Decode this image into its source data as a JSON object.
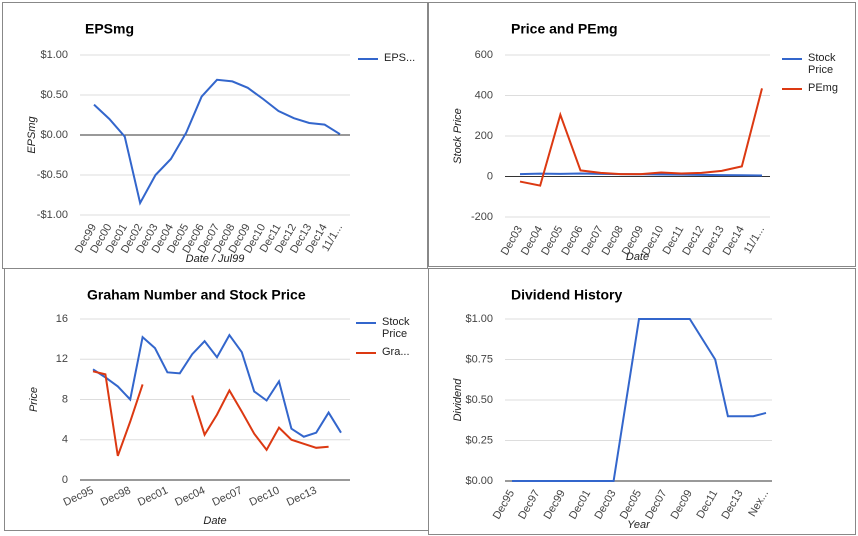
{
  "chart_data": [
    {
      "type": "line",
      "title": "EPSmg",
      "ylabel": "EPSmg",
      "xlabel": "Date / Jul99",
      "categories": [
        "Dec99",
        "Dec00",
        "Dec01",
        "Dec02",
        "Dec03",
        "Dec04",
        "Dec05",
        "Dec06",
        "Dec07",
        "Dec08",
        "Dec09",
        "Dec10",
        "Dec11",
        "Dec12",
        "Dec13",
        "Dec14",
        "11/1..."
      ],
      "series": [
        {
          "name": "EPS...",
          "color": "#3366cc",
          "values": [
            0.38,
            0.2,
            -0.02,
            -0.85,
            -0.5,
            -0.3,
            0.03,
            0.48,
            0.69,
            0.67,
            0.59,
            0.45,
            0.3,
            0.21,
            0.15,
            0.13,
            0.01
          ]
        }
      ],
      "ylim": [
        -1,
        1
      ],
      "yticks": [
        {
          "value": -1,
          "label": "-$1.00"
        },
        {
          "value": -0.5,
          "label": "-$0.50"
        },
        {
          "value": 0,
          "label": "$0.00"
        },
        {
          "value": 0.5,
          "label": "$0.50"
        },
        {
          "value": 1,
          "label": "$1.00"
        }
      ],
      "grid": true,
      "legend": "right"
    },
    {
      "type": "line",
      "title": "Price and PEmg",
      "ylabel": "Stock Price",
      "xlabel": "Date",
      "categories": [
        "Dec03",
        "Dec04",
        "Dec05",
        "Dec06",
        "Dec07",
        "Dec08",
        "Dec09",
        "Dec10",
        "Dec11",
        "Dec12",
        "Dec13",
        "Dec14",
        "11/1..."
      ],
      "series": [
        {
          "name": "Stock Price",
          "color": "#3366cc",
          "values": [
            12,
            14,
            13,
            15,
            13,
            12,
            11,
            10,
            9,
            8,
            7,
            6,
            5
          ]
        },
        {
          "name": "PEmg",
          "color": "#dc3912",
          "values": [
            -25,
            -45,
            305,
            30,
            18,
            12,
            12,
            20,
            15,
            18,
            28,
            50,
            435
          ]
        }
      ],
      "ylim": [
        -200,
        600
      ],
      "yticks": [
        -200,
        0,
        200,
        400,
        600
      ],
      "grid": true,
      "legend": "right"
    },
    {
      "type": "line",
      "title": "Graham Number and Stock Price",
      "ylabel": "Price",
      "xlabel": "Date",
      "categories": [
        "Dec95",
        null,
        null,
        "Dec98",
        null,
        null,
        "Dec01",
        null,
        null,
        "Dec04",
        null,
        null,
        "Dec07",
        null,
        null,
        "Dec10",
        null,
        null,
        "Dec13",
        null,
        null
      ],
      "series": [
        {
          "name": "Stock Price",
          "color": "#3366cc",
          "values": [
            11,
            10.2,
            9.3,
            8,
            14.2,
            13.1,
            10.7,
            10.6,
            12.5,
            13.8,
            12.2,
            14.4,
            12.7,
            8.8,
            7.9,
            9.8,
            5.1,
            4.3,
            4.7,
            6.7,
            4.7
          ]
        },
        {
          "name": "Gra...",
          "color": "#dc3912",
          "values": [
            10.8,
            10.5,
            2.4,
            5.8,
            9.5,
            null,
            null,
            null,
            8.4,
            4.5,
            6.5,
            8.9,
            6.8,
            4.6,
            3.0,
            5.2,
            4.0,
            3.6,
            3.2,
            3.3,
            null
          ]
        }
      ],
      "ylim": [
        0,
        16
      ],
      "yticks": [
        0,
        4,
        8,
        12,
        16
      ],
      "grid": true,
      "legend": "right"
    },
    {
      "type": "line",
      "title": "Dividend History",
      "ylabel": "Dividend",
      "xlabel": "Year",
      "categories": [
        "Dec95",
        null,
        "Dec97",
        null,
        "Dec99",
        null,
        "Dec01",
        null,
        "Dec03",
        null,
        "Dec05",
        null,
        "Dec07",
        null,
        "Dec09",
        null,
        "Dec11",
        null,
        "Dec13",
        null,
        "Nex..."
      ],
      "color": "#3366cc",
      "values": [
        0,
        0,
        0,
        0,
        0,
        0,
        0,
        0,
        0,
        0.5,
        1,
        1,
        1,
        1,
        1,
        0.875,
        0.75,
        0.4,
        0.4,
        0.4,
        0.42
      ],
      "ylim": [
        0,
        1
      ],
      "yticks": [
        {
          "value": 0,
          "label": "$0.00"
        },
        {
          "value": 0.25,
          "label": "$0.25"
        },
        {
          "value": 0.5,
          "label": "$0.50"
        },
        {
          "value": 0.75,
          "label": "$0.75"
        },
        {
          "value": 1,
          "label": "$1.00"
        }
      ],
      "grid": true
    }
  ]
}
